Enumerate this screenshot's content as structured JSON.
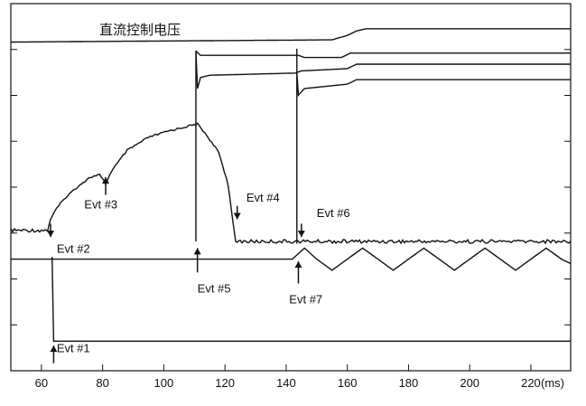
{
  "chart_data": {
    "type": "line",
    "title": "直流控制电压",
    "x_unit": "(ms)",
    "xlim": [
      50,
      233
    ],
    "x_ticks": [
      60,
      80,
      100,
      120,
      140,
      160,
      180,
      200,
      220
    ],
    "grid": false,
    "series": [
      {
        "id": "trace-top",
        "points": [
          [
            50,
            90
          ],
          [
            155,
            91
          ],
          [
            160,
            93
          ],
          [
            163,
            95
          ],
          [
            166,
            96
          ],
          [
            233,
            96
          ]
        ]
      },
      {
        "id": "trace-2",
        "points": [
          [
            110.5,
            86
          ],
          [
            111,
            69
          ],
          [
            112,
            74
          ],
          [
            115,
            75
          ],
          [
            143,
            76
          ],
          [
            145,
            77
          ],
          [
            160,
            78
          ],
          [
            163,
            80
          ],
          [
            233,
            80
          ]
        ]
      },
      {
        "id": "trace-3",
        "points": [
          [
            143.5,
            76
          ],
          [
            144,
            66
          ],
          [
            146,
            69
          ],
          [
            160,
            71
          ],
          [
            163,
            73
          ],
          [
            233,
            73
          ]
        ]
      },
      {
        "id": "trace-4",
        "points": [
          [
            110.5,
            86
          ],
          [
            112,
            84
          ],
          [
            144,
            84
          ],
          [
            146,
            83
          ],
          [
            158,
            83
          ],
          [
            161,
            85
          ],
          [
            233,
            85
          ]
        ]
      },
      {
        "id": "trace-event-curve",
        "points": [
          [
            50,
            5
          ],
          [
            60,
            5
          ],
          [
            62,
            5
          ],
          [
            63,
            10
          ],
          [
            65,
            15
          ],
          [
            68,
            20
          ],
          [
            72,
            25
          ],
          [
            76,
            29
          ],
          [
            79,
            30
          ],
          [
            81,
            26
          ],
          [
            83,
            32
          ],
          [
            88,
            41
          ],
          [
            95,
            47
          ],
          [
            102,
            50
          ],
          [
            108,
            52
          ],
          [
            111,
            53
          ],
          [
            114,
            48
          ],
          [
            118,
            40
          ],
          [
            121,
            26
          ],
          [
            122.5,
            10
          ],
          [
            123.5,
            0
          ],
          [
            125,
            0
          ],
          [
            233,
            0
          ]
        ]
      },
      {
        "id": "trace-evt7",
        "points": [
          [
            50,
            -8
          ],
          [
            142,
            -8
          ],
          [
            146,
            -3
          ],
          [
            150,
            -8
          ],
          [
            155,
            -13
          ],
          [
            160,
            -8
          ],
          [
            165,
            -3
          ],
          [
            170,
            -8
          ],
          [
            175,
            -13
          ],
          [
            180,
            -8
          ],
          [
            185,
            -3
          ],
          [
            190,
            -8
          ],
          [
            195,
            -13
          ],
          [
            200,
            -8
          ],
          [
            205,
            -3
          ],
          [
            210,
            -8
          ],
          [
            215,
            -13
          ],
          [
            220,
            -8
          ],
          [
            225,
            -3
          ],
          [
            230,
            -8
          ],
          [
            233,
            -10
          ]
        ]
      },
      {
        "id": "trace-evt1",
        "points": [
          [
            63.5,
            -7
          ],
          [
            64,
            -45
          ],
          [
            233,
            -45
          ]
        ]
      }
    ],
    "event_lines": [
      {
        "x": 110.5,
        "from": 0,
        "to": 86
      },
      {
        "x": 143.5,
        "from": -1,
        "to": 87
      }
    ],
    "annotations": [
      {
        "text": "Evt #1",
        "x": 65,
        "y": -50,
        "arrow_x": 64,
        "arrow_from": -55,
        "arrow_to": -47
      },
      {
        "text": "Evt #2",
        "x": 65,
        "y": -5,
        "arrow_x": 63,
        "arrow_from": 8,
        "arrow_to": 2
      },
      {
        "text": "Evt #3",
        "x": 74,
        "y": 15,
        "arrow_x": 81,
        "arrow_from": 21,
        "arrow_to": 29
      },
      {
        "text": "Evt #4",
        "x": 127,
        "y": 18,
        "arrow_x": 124,
        "arrow_from": 16,
        "arrow_to": 10
      },
      {
        "text": "Evt #5",
        "x": 111,
        "y": -23,
        "arrow_x": 111,
        "arrow_from": -14,
        "arrow_to": -3
      },
      {
        "text": "Evt #6",
        "x": 150,
        "y": 11,
        "arrow_x": 145,
        "arrow_from": 8,
        "arrow_to": 2
      },
      {
        "text": "Evt #7",
        "x": 141,
        "y": -28,
        "arrow_x": 144,
        "arrow_from": -19,
        "arrow_to": -9
      }
    ]
  }
}
